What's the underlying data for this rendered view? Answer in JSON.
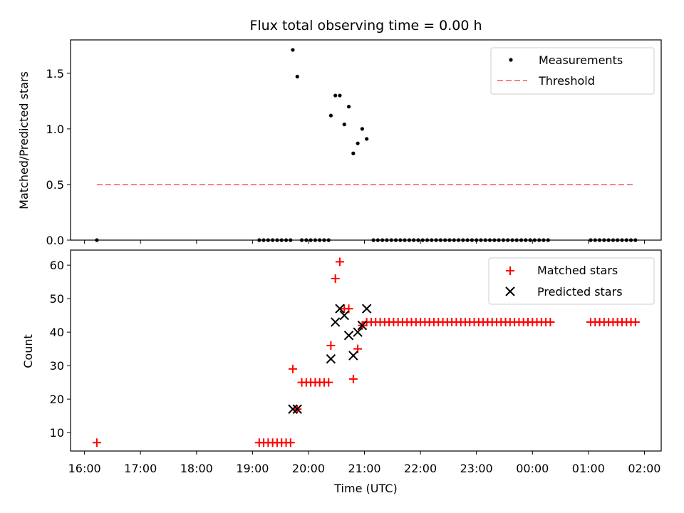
{
  "chart_data": [
    {
      "type": "scatter",
      "title": "Flux total observing time = 0.00 h",
      "xlabel": "",
      "ylabel": "Matched/Predicted stars",
      "xlim": [
        15.75,
        26.3
      ],
      "ylim": [
        0,
        1.8
      ],
      "yticks": [
        0.0,
        0.5,
        1.0,
        1.5
      ],
      "ytick_labels": [
        "0.0",
        "0.5",
        "1.0",
        "1.5"
      ],
      "legend": {
        "placement": "top-right",
        "entries": [
          "Measurements",
          "Threshold"
        ]
      },
      "series": [
        {
          "name": "Measurements",
          "color": "#000000",
          "marker": "dot",
          "points": [
            [
              16.22,
              0
            ],
            [
              19.12,
              0
            ],
            [
              19.2,
              0
            ],
            [
              19.28,
              0
            ],
            [
              19.36,
              0
            ],
            [
              19.44,
              0
            ],
            [
              19.52,
              0
            ],
            [
              19.6,
              0
            ],
            [
              19.68,
              0
            ],
            [
              19.72,
              1.71
            ],
            [
              19.8,
              1.47
            ],
            [
              19.88,
              0
            ],
            [
              19.96,
              0
            ],
            [
              20.04,
              0
            ],
            [
              20.12,
              0
            ],
            [
              20.2,
              0
            ],
            [
              20.28,
              0
            ],
            [
              20.36,
              0
            ],
            [
              20.4,
              1.12
            ],
            [
              20.48,
              1.3
            ],
            [
              20.56,
              1.3
            ],
            [
              20.64,
              1.04
            ],
            [
              20.72,
              1.2
            ],
            [
              20.8,
              0.78
            ],
            [
              20.88,
              0.87
            ],
            [
              20.96,
              1.0
            ],
            [
              21.04,
              0.91
            ],
            [
              21.16,
              0
            ],
            [
              21.24,
              0
            ],
            [
              21.32,
              0
            ],
            [
              21.4,
              0
            ],
            [
              21.48,
              0
            ],
            [
              21.56,
              0
            ],
            [
              21.64,
              0
            ],
            [
              21.72,
              0
            ],
            [
              21.8,
              0
            ],
            [
              21.88,
              0
            ],
            [
              21.96,
              0
            ],
            [
              22.04,
              0
            ],
            [
              22.12,
              0
            ],
            [
              22.2,
              0
            ],
            [
              22.28,
              0
            ],
            [
              22.36,
              0
            ],
            [
              22.44,
              0
            ],
            [
              22.52,
              0
            ],
            [
              22.6,
              0
            ],
            [
              22.68,
              0
            ],
            [
              22.76,
              0
            ],
            [
              22.84,
              0
            ],
            [
              22.92,
              0
            ],
            [
              23.0,
              0
            ],
            [
              23.08,
              0
            ],
            [
              23.16,
              0
            ],
            [
              23.24,
              0
            ],
            [
              23.32,
              0
            ],
            [
              23.4,
              0
            ],
            [
              23.48,
              0
            ],
            [
              23.56,
              0
            ],
            [
              23.64,
              0
            ],
            [
              23.72,
              0
            ],
            [
              23.8,
              0
            ],
            [
              23.88,
              0
            ],
            [
              23.96,
              0
            ],
            [
              24.04,
              0
            ],
            [
              24.12,
              0
            ],
            [
              24.2,
              0
            ],
            [
              24.28,
              0
            ],
            [
              25.04,
              0
            ],
            [
              25.12,
              0
            ],
            [
              25.2,
              0
            ],
            [
              25.28,
              0
            ],
            [
              25.36,
              0
            ],
            [
              25.44,
              0
            ],
            [
              25.52,
              0
            ],
            [
              25.6,
              0
            ],
            [
              25.68,
              0
            ],
            [
              25.76,
              0
            ],
            [
              25.84,
              0
            ]
          ]
        },
        {
          "name": "Threshold",
          "color": "#ff8080",
          "style": "dashed",
          "x": [
            16.22,
            25.84
          ],
          "y": [
            0.5,
            0.5
          ]
        }
      ]
    },
    {
      "type": "scatter",
      "title": "",
      "xlabel": "Time (UTC)",
      "ylabel": "Count",
      "xlim": [
        15.75,
        26.3
      ],
      "ylim": [
        4.5,
        64.5
      ],
      "yticks": [
        10,
        20,
        30,
        40,
        50,
        60
      ],
      "ytick_labels": [
        "10",
        "20",
        "30",
        "40",
        "50",
        "60"
      ],
      "xticks": [
        16,
        17,
        18,
        19,
        20,
        21,
        22,
        23,
        24,
        25,
        26
      ],
      "xtick_labels": [
        "16:00",
        "17:00",
        "18:00",
        "19:00",
        "20:00",
        "21:00",
        "22:00",
        "23:00",
        "00:00",
        "01:00",
        "02:00"
      ],
      "legend": {
        "placement": "top-right",
        "entries": [
          "Matched stars",
          "Predicted stars"
        ]
      },
      "series": [
        {
          "name": "Matched stars",
          "color": "#ff0000",
          "marker": "plus",
          "points": [
            [
              16.22,
              7
            ],
            [
              19.12,
              7
            ],
            [
              19.2,
              7
            ],
            [
              19.28,
              7
            ],
            [
              19.36,
              7
            ],
            [
              19.44,
              7
            ],
            [
              19.52,
              7
            ],
            [
              19.6,
              7
            ],
            [
              19.68,
              7
            ],
            [
              19.72,
              29
            ],
            [
              19.8,
              17
            ],
            [
              19.88,
              25
            ],
            [
              19.96,
              25
            ],
            [
              20.04,
              25
            ],
            [
              20.12,
              25
            ],
            [
              20.2,
              25
            ],
            [
              20.28,
              25
            ],
            [
              20.36,
              25
            ],
            [
              20.4,
              36
            ],
            [
              20.48,
              56
            ],
            [
              20.56,
              61
            ],
            [
              20.64,
              47
            ],
            [
              20.72,
              47
            ],
            [
              20.8,
              26
            ],
            [
              20.88,
              35
            ],
            [
              20.96,
              42
            ],
            [
              21.04,
              43
            ],
            [
              21.12,
              43
            ],
            [
              21.2,
              43
            ],
            [
              21.28,
              43
            ],
            [
              21.36,
              43
            ],
            [
              21.44,
              43
            ],
            [
              21.52,
              43
            ],
            [
              21.6,
              43
            ],
            [
              21.68,
              43
            ],
            [
              21.76,
              43
            ],
            [
              21.84,
              43
            ],
            [
              21.92,
              43
            ],
            [
              22.0,
              43
            ],
            [
              22.08,
              43
            ],
            [
              22.16,
              43
            ],
            [
              22.24,
              43
            ],
            [
              22.32,
              43
            ],
            [
              22.4,
              43
            ],
            [
              22.48,
              43
            ],
            [
              22.56,
              43
            ],
            [
              22.64,
              43
            ],
            [
              22.72,
              43
            ],
            [
              22.8,
              43
            ],
            [
              22.88,
              43
            ],
            [
              22.96,
              43
            ],
            [
              23.04,
              43
            ],
            [
              23.12,
              43
            ],
            [
              23.2,
              43
            ],
            [
              23.28,
              43
            ],
            [
              23.36,
              43
            ],
            [
              23.44,
              43
            ],
            [
              23.52,
              43
            ],
            [
              23.6,
              43
            ],
            [
              23.68,
              43
            ],
            [
              23.76,
              43
            ],
            [
              23.84,
              43
            ],
            [
              23.92,
              43
            ],
            [
              24.0,
              43
            ],
            [
              24.08,
              43
            ],
            [
              24.16,
              43
            ],
            [
              24.24,
              43
            ],
            [
              24.32,
              43
            ],
            [
              25.04,
              43
            ],
            [
              25.12,
              43
            ],
            [
              25.2,
              43
            ],
            [
              25.28,
              43
            ],
            [
              25.36,
              43
            ],
            [
              25.44,
              43
            ],
            [
              25.52,
              43
            ],
            [
              25.6,
              43
            ],
            [
              25.68,
              43
            ],
            [
              25.76,
              43
            ],
            [
              25.84,
              43
            ]
          ]
        },
        {
          "name": "Predicted stars",
          "color": "#000000",
          "marker": "x",
          "points": [
            [
              19.72,
              17
            ],
            [
              19.8,
              17
            ],
            [
              20.4,
              32
            ],
            [
              20.48,
              43
            ],
            [
              20.56,
              47
            ],
            [
              20.64,
              45
            ],
            [
              20.72,
              39
            ],
            [
              20.8,
              33
            ],
            [
              20.88,
              40
            ],
            [
              20.96,
              42
            ],
            [
              21.04,
              47
            ]
          ]
        }
      ]
    }
  ]
}
